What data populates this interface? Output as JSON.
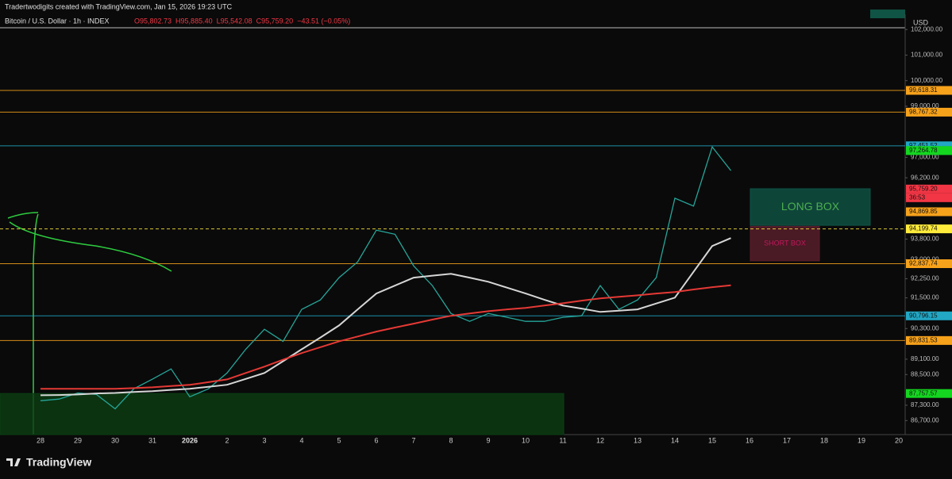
{
  "header": {
    "credit": "Tradertwodigits created with TradingView.com, Jan 15, 2026 19:23 UTC",
    "symbol": "Bitcoin / U.S. Dollar · 1h · INDEX",
    "ohlc": [
      "O95,802.73",
      "H95,885.40",
      "L95,542.08",
      "C95,759.20",
      "−43.51 (−0.05%)"
    ],
    "currency": "USD"
  },
  "footer": {
    "brand": "TradingView"
  },
  "chart_data": {
    "type": "line",
    "categories": [
      "28",
      null,
      "29",
      null,
      "30",
      null,
      "31",
      null,
      "2026",
      null,
      "2",
      null,
      "3",
      null,
      "4",
      null,
      "5",
      null,
      "6",
      null,
      "7",
      null,
      "8",
      null,
      "9",
      null,
      "10",
      null,
      "11",
      null,
      "12",
      null,
      "13",
      null,
      "14",
      null,
      "15",
      null,
      "16",
      null,
      "17",
      null,
      "18",
      null,
      "19",
      null,
      "20"
    ],
    "series": [
      {
        "color": "#26a69a",
        "values": [
          87475,
          87540,
          87780,
          87720,
          87160,
          87940,
          88320,
          88720,
          87630,
          87940,
          88560,
          89490,
          90270,
          89800,
          91050,
          91420,
          92290,
          92910,
          94150,
          93990,
          92750,
          91980,
          90890,
          90580,
          90890,
          90740,
          90580,
          90580,
          90740,
          90800,
          91980,
          91050,
          91420,
          92290,
          95400,
          95090,
          97410,
          96480,
          null,
          null,
          null,
          null,
          null,
          null,
          null,
          null,
          null
        ]
      },
      {
        "color": "#d6d6d6",
        "values": [
          87690,
          87700,
          87720,
          87760,
          87780,
          87820,
          87850,
          87900,
          87940,
          88020,
          88100,
          88330,
          88560,
          89020,
          89490,
          89950,
          90420,
          91050,
          91670,
          91980,
          92290,
          92370,
          92440,
          92290,
          92130,
          91900,
          91670,
          91430,
          91200,
          91080,
          90950,
          91000,
          91050,
          91280,
          91510,
          92520,
          93530,
          93840,
          null,
          null,
          null,
          null,
          null,
          null,
          null,
          null,
          null
        ]
      },
      {
        "color": "#e53935",
        "values": [
          87940,
          87940,
          87940,
          87940,
          87940,
          87970,
          88000,
          88050,
          88100,
          88200,
          88310,
          88560,
          88810,
          89080,
          89340,
          89570,
          89800,
          89990,
          90180,
          90340,
          90490,
          90650,
          90800,
          90890,
          90980,
          91050,
          91110,
          91200,
          91290,
          91390,
          91480,
          91540,
          91600,
          91670,
          91730,
          91830,
          91920,
          91990,
          null,
          null,
          null,
          null,
          null,
          null,
          null,
          null,
          null
        ]
      }
    ],
    "ylim": [
      86150,
      102070
    ],
    "yticks": [
      {
        "value": 102000,
        "label": "102,000.00"
      },
      {
        "value": 101000,
        "label": "101,000.00"
      },
      {
        "value": 100000,
        "label": "100,000.00"
      },
      {
        "value": 99000,
        "label": "99,000.00"
      },
      {
        "value": 97000,
        "label": "97,000.00"
      },
      {
        "value": 96200,
        "label": "96,200.00"
      },
      {
        "value": 93800,
        "label": "93,800.00"
      },
      {
        "value": 93000,
        "label": "93,000.00"
      },
      {
        "value": 92250,
        "label": "92,250.00"
      },
      {
        "value": 91500,
        "label": "91,500.00"
      },
      {
        "value": 90300,
        "label": "90,300.00"
      },
      {
        "value": 89100,
        "label": "89,100.00"
      },
      {
        "value": 88500,
        "label": "88,500.00"
      },
      {
        "value": 87300,
        "label": "87,300.00"
      },
      {
        "value": 86700,
        "label": "86,700.00"
      }
    ],
    "price_labels": [
      {
        "value": 99618.31,
        "label": "99,618.31",
        "color": "#f7a21b",
        "line": true
      },
      {
        "value": 98767.32,
        "label": "98,767.32",
        "color": "#f7a21b",
        "line": true
      },
      {
        "value": 97451.52,
        "label": "97,451.52",
        "color": "#22a7c4",
        "line": true
      },
      {
        "value": 97265.21,
        "label": "97,265.21",
        "color": "#1bb34a",
        "line": false
      },
      {
        "value": 97264.78,
        "label": "97,264.78",
        "color": "#14d620",
        "line": false
      },
      {
        "value": 95759.2,
        "label": "95,759.20",
        "color": "#f23645",
        "line": false
      },
      {
        "value": 94869.85,
        "label": "94,869.85",
        "color": "#f7a21b",
        "line": false
      },
      {
        "value": 94199.74,
        "label": "94,199.74",
        "color": "#ffeb3b",
        "line": true
      },
      {
        "value": 92837.74,
        "label": "92,837.74",
        "color": "#f7a21b",
        "line": true
      },
      {
        "value": 90796.15,
        "label": "90,796.15",
        "color": "#22a7c4",
        "line": true
      },
      {
        "value": 89831.53,
        "label": "89,831.53",
        "color": "#f7a21b",
        "line": true
      },
      {
        "value": 87757.57,
        "label": "87,757.57",
        "color": "#14d620",
        "line": false
      }
    ],
    "countdown": "36:53",
    "boxes": [
      {
        "label": "LONG BOX",
        "top": 95770,
        "bottom": 94340,
        "fill": "#0f5445",
        "text_color": "#4caf50"
      },
      {
        "label": "SHORT BOX",
        "top": 94300,
        "bottom": 92950,
        "fill": "#5a1e2c",
        "text_color": "#c2185b"
      },
      {
        "top": 87757.57,
        "bottom": 86150,
        "fill": "#0b3d12"
      }
    ]
  }
}
